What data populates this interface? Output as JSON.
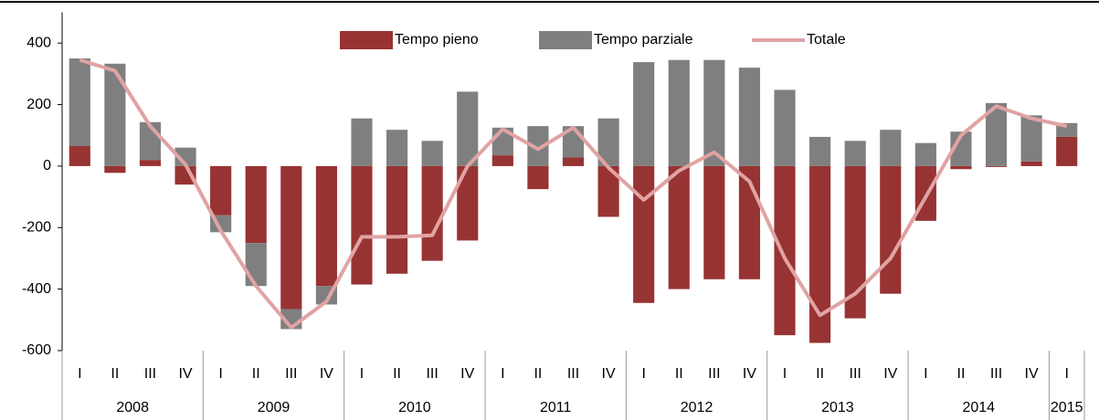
{
  "chart_data": {
    "type": "bar-line",
    "groups": [
      {
        "label": "2008",
        "quarters": [
          "I",
          "II",
          "III",
          "IV"
        ]
      },
      {
        "label": "2009",
        "quarters": [
          "I",
          "II",
          "III",
          "IV"
        ]
      },
      {
        "label": "2010",
        "quarters": [
          "I",
          "II",
          "III",
          "IV"
        ]
      },
      {
        "label": "2011",
        "quarters": [
          "I",
          "II",
          "III",
          "IV"
        ]
      },
      {
        "label": "2012",
        "quarters": [
          "I",
          "II",
          "III",
          "IV"
        ]
      },
      {
        "label": "2013",
        "quarters": [
          "I",
          "II",
          "III",
          "IV"
        ]
      },
      {
        "label": "2014",
        "quarters": [
          "I",
          "II",
          "III",
          "IV"
        ]
      },
      {
        "label": "2015",
        "quarters": [
          "I"
        ]
      }
    ],
    "series": [
      {
        "name": "Tempo pieno",
        "type": "bar",
        "color": "#983333",
        "values": [
          65,
          -22,
          20,
          -60,
          -160,
          -250,
          -465,
          -390,
          -385,
          -350,
          -308,
          -242,
          35,
          -75,
          28,
          -165,
          -445,
          -400,
          -368,
          -368,
          -550,
          -575,
          -495,
          -415,
          -178,
          -10,
          -3,
          15,
          95
        ]
      },
      {
        "name": "Tempo parziale",
        "type": "bar",
        "color": "#7f7f7f",
        "values": [
          285,
          333,
          123,
          60,
          -55,
          -140,
          -65,
          -60,
          155,
          118,
          82,
          242,
          90,
          130,
          102,
          155,
          338,
          345,
          345,
          320,
          248,
          95,
          82,
          118,
          75,
          112,
          205,
          150,
          45
        ]
      },
      {
        "name": "Totale",
        "type": "line",
        "color": "#e0a3a3",
        "values": [
          345,
          310,
          130,
          5,
          -210,
          -390,
          -525,
          -440,
          -230,
          -230,
          -225,
          0,
          120,
          55,
          125,
          -5,
          -110,
          -15,
          45,
          -50,
          -300,
          -485,
          -415,
          -300,
          -100,
          100,
          195,
          155,
          130
        ]
      }
    ],
    "ylim": [
      -600,
      500
    ],
    "yticks": [
      -600,
      -400,
      -200,
      0,
      200,
      400
    ]
  }
}
